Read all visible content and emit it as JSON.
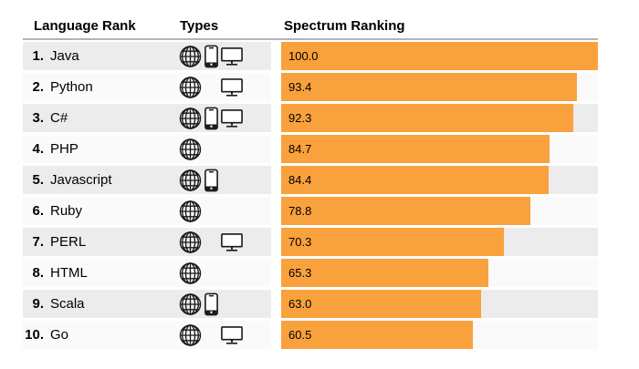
{
  "chart_data": {
    "type": "bar",
    "title": "Spectrum Ranking",
    "columns": [
      "Language Rank",
      "Types",
      "Spectrum Ranking"
    ],
    "ranks": [
      "1.",
      "2.",
      "3.",
      "4.",
      "5.",
      "6.",
      "7.",
      "8.",
      "9.",
      "10."
    ],
    "categories": [
      "Java",
      "Python",
      "C#",
      "PHP",
      "Javascript",
      "Ruby",
      "PERL",
      "HTML",
      "Scala",
      "Go"
    ],
    "values": [
      100.0,
      93.4,
      92.3,
      84.7,
      84.4,
      78.8,
      70.3,
      65.3,
      63.0,
      60.5
    ],
    "value_labels": [
      "100.0",
      "93.4",
      "92.3",
      "84.7",
      "84.4",
      "78.8",
      "70.3",
      "65.3",
      "63.0",
      "60.5"
    ],
    "types_per_row": [
      [
        "web",
        "mobile",
        "desktop"
      ],
      [
        "web",
        "desktop"
      ],
      [
        "web",
        "mobile",
        "desktop"
      ],
      [
        "web"
      ],
      [
        "web",
        "mobile"
      ],
      [
        "web"
      ],
      [
        "web",
        "desktop"
      ],
      [
        "web"
      ],
      [
        "web",
        "mobile"
      ],
      [
        "web",
        "desktop"
      ]
    ],
    "type_icon_names": [
      "web-icon",
      "mobile-icon",
      "desktop-icon"
    ],
    "xlim": [
      0,
      100
    ],
    "orientation": "horizontal",
    "value_labels_inside_bars": true,
    "grid": false,
    "legend": false
  },
  "colors": {
    "bar": "#F9A13C",
    "row_odd_bg": "#ECECEC",
    "row_even_bg": "#FAFAFA",
    "header_rule": "#B3B3B3",
    "text": "#000000"
  }
}
